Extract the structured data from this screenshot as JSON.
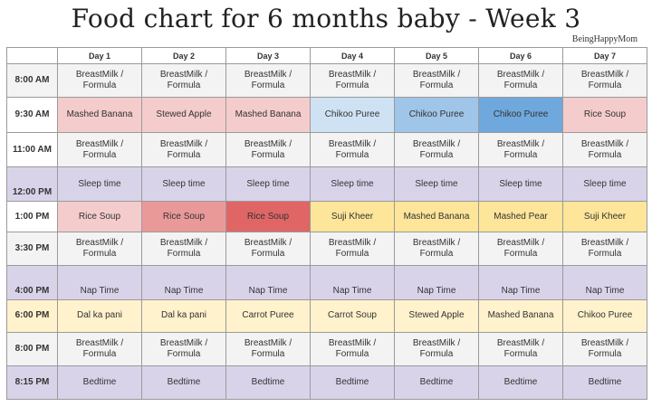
{
  "title": "Food chart for 6 months baby - Week 3",
  "brand": "BeingHappyMom",
  "days": [
    "Day 1",
    "Day 2",
    "Day 3",
    "Day 4",
    "Day 5",
    "Day 6",
    "Day 7"
  ],
  "colors": {
    "white": "#ffffff",
    "grey": "#f3f3f3",
    "purple": "#d9d3ea",
    "pink": "#f4cccc",
    "pink2": "#ea9999",
    "red": "#e06666",
    "yellow": "#fde59a",
    "yellow2": "#fff2cc",
    "lblue": "#cfe2f3",
    "mblue": "#9fc5e8",
    "dblue": "#6fa8dc"
  },
  "rows": [
    {
      "time": "8:00 AM",
      "h": 36,
      "rowbg": "grey",
      "cells": [
        {
          "t": "BreastMilk / Formula"
        },
        {
          "t": "BreastMilk / Formula"
        },
        {
          "t": "BreastMilk / Formula"
        },
        {
          "t": "BreastMilk / Formula"
        },
        {
          "t": "BreastMilk / Formula"
        },
        {
          "t": "BreastMilk / Formula"
        },
        {
          "t": "BreastMilk / Formula"
        }
      ]
    },
    {
      "time": "9:30 AM",
      "h": 38,
      "rowbg": "white",
      "cells": [
        {
          "t": "Mashed Banana",
          "bg": "pink"
        },
        {
          "t": "Stewed Apple",
          "bg": "pink"
        },
        {
          "t": "Mashed Banana",
          "bg": "pink"
        },
        {
          "t": "Chikoo Puree",
          "bg": "lblue"
        },
        {
          "t": "Chikoo Puree",
          "bg": "mblue"
        },
        {
          "t": "Chikoo Puree",
          "bg": "dblue"
        },
        {
          "t": "Rice Soup",
          "bg": "pink"
        }
      ]
    },
    {
      "time": "11:00 AM",
      "h": 38,
      "rowbg": "white",
      "cells": [
        {
          "t": "BreastMilk / Formula",
          "bg": "grey"
        },
        {
          "t": "BreastMilk / Formula",
          "bg": "grey"
        },
        {
          "t": "BreastMilk / Formula",
          "bg": "grey"
        },
        {
          "t": "BreastMilk / Formula",
          "bg": "grey"
        },
        {
          "t": "BreastMilk / Formula",
          "bg": "grey"
        },
        {
          "t": "BreastMilk / Formula",
          "bg": "grey"
        },
        {
          "t": "BreastMilk / Formula",
          "bg": "grey"
        }
      ]
    },
    {
      "time": "12:00 PM",
      "h": 37,
      "rowbg": "purple",
      "timeBottom": true,
      "cells": [
        {
          "t": "Sleep time"
        },
        {
          "t": "Sleep time"
        },
        {
          "t": "Sleep time"
        },
        {
          "t": "Sleep time"
        },
        {
          "t": "Sleep time"
        },
        {
          "t": "Sleep time"
        },
        {
          "t": "Sleep time"
        }
      ]
    },
    {
      "time": "1:00 PM",
      "h": 33,
      "rowbg": "white",
      "cells": [
        {
          "t": "Rice Soup",
          "bg": "pink"
        },
        {
          "t": "Rice Soup",
          "bg": "pink2"
        },
        {
          "t": "Rice Soup",
          "bg": "red"
        },
        {
          "t": "Suji Kheer",
          "bg": "yellow"
        },
        {
          "t": "Mashed Banana",
          "bg": "yellow"
        },
        {
          "t": "Mashed Pear",
          "bg": "yellow"
        },
        {
          "t": "Suji Kheer",
          "bg": "yellow"
        }
      ]
    },
    {
      "time": "3:30 PM",
      "h": 36,
      "rowbg": "grey",
      "cells": [
        {
          "t": "BreastMilk / Formula"
        },
        {
          "t": "BreastMilk / Formula"
        },
        {
          "t": "BreastMilk / Formula"
        },
        {
          "t": "BreastMilk / Formula"
        },
        {
          "t": "BreastMilk / Formula"
        },
        {
          "t": "BreastMilk / Formula"
        },
        {
          "t": "BreastMilk / Formula"
        }
      ]
    },
    {
      "time": "4:00 PM",
      "h": 37,
      "rowbg": "purple",
      "timeBottom": true,
      "cellBottom": true,
      "cells": [
        {
          "t": "Nap Time"
        },
        {
          "t": "Nap Time"
        },
        {
          "t": "Nap Time"
        },
        {
          "t": "Nap Time"
        },
        {
          "t": "Nap Time"
        },
        {
          "t": "Nap Time"
        },
        {
          "t": "Nap Time"
        }
      ]
    },
    {
      "time": "6:00 PM",
      "h": 36,
      "rowbg": "yellow2",
      "cells": [
        {
          "t": "Dal ka pani"
        },
        {
          "t": "Dal ka pani"
        },
        {
          "t": "Carrot Puree"
        },
        {
          "t": "Carrot Soup"
        },
        {
          "t": "Stewed Apple"
        },
        {
          "t": "Mashed Banana"
        },
        {
          "t": "Chikoo Puree"
        }
      ]
    },
    {
      "time": "8:00 PM",
      "h": 36,
      "rowbg": "grey",
      "cells": [
        {
          "t": "BreastMilk / Formula"
        },
        {
          "t": "BreastMilk / Formula"
        },
        {
          "t": "BreastMilk / Formula"
        },
        {
          "t": "BreastMilk / Formula"
        },
        {
          "t": "BreastMilk / Formula"
        },
        {
          "t": "BreastMilk / Formula"
        },
        {
          "t": "BreastMilk / Formula"
        }
      ]
    },
    {
      "time": "8:15 PM",
      "h": 36,
      "rowbg": "purple",
      "cells": [
        {
          "t": "Bedtime"
        },
        {
          "t": "Bedtime"
        },
        {
          "t": "Bedtime"
        },
        {
          "t": "Bedtime"
        },
        {
          "t": "Bedtime"
        },
        {
          "t": "Bedtime"
        },
        {
          "t": "Bedtime"
        }
      ]
    }
  ]
}
